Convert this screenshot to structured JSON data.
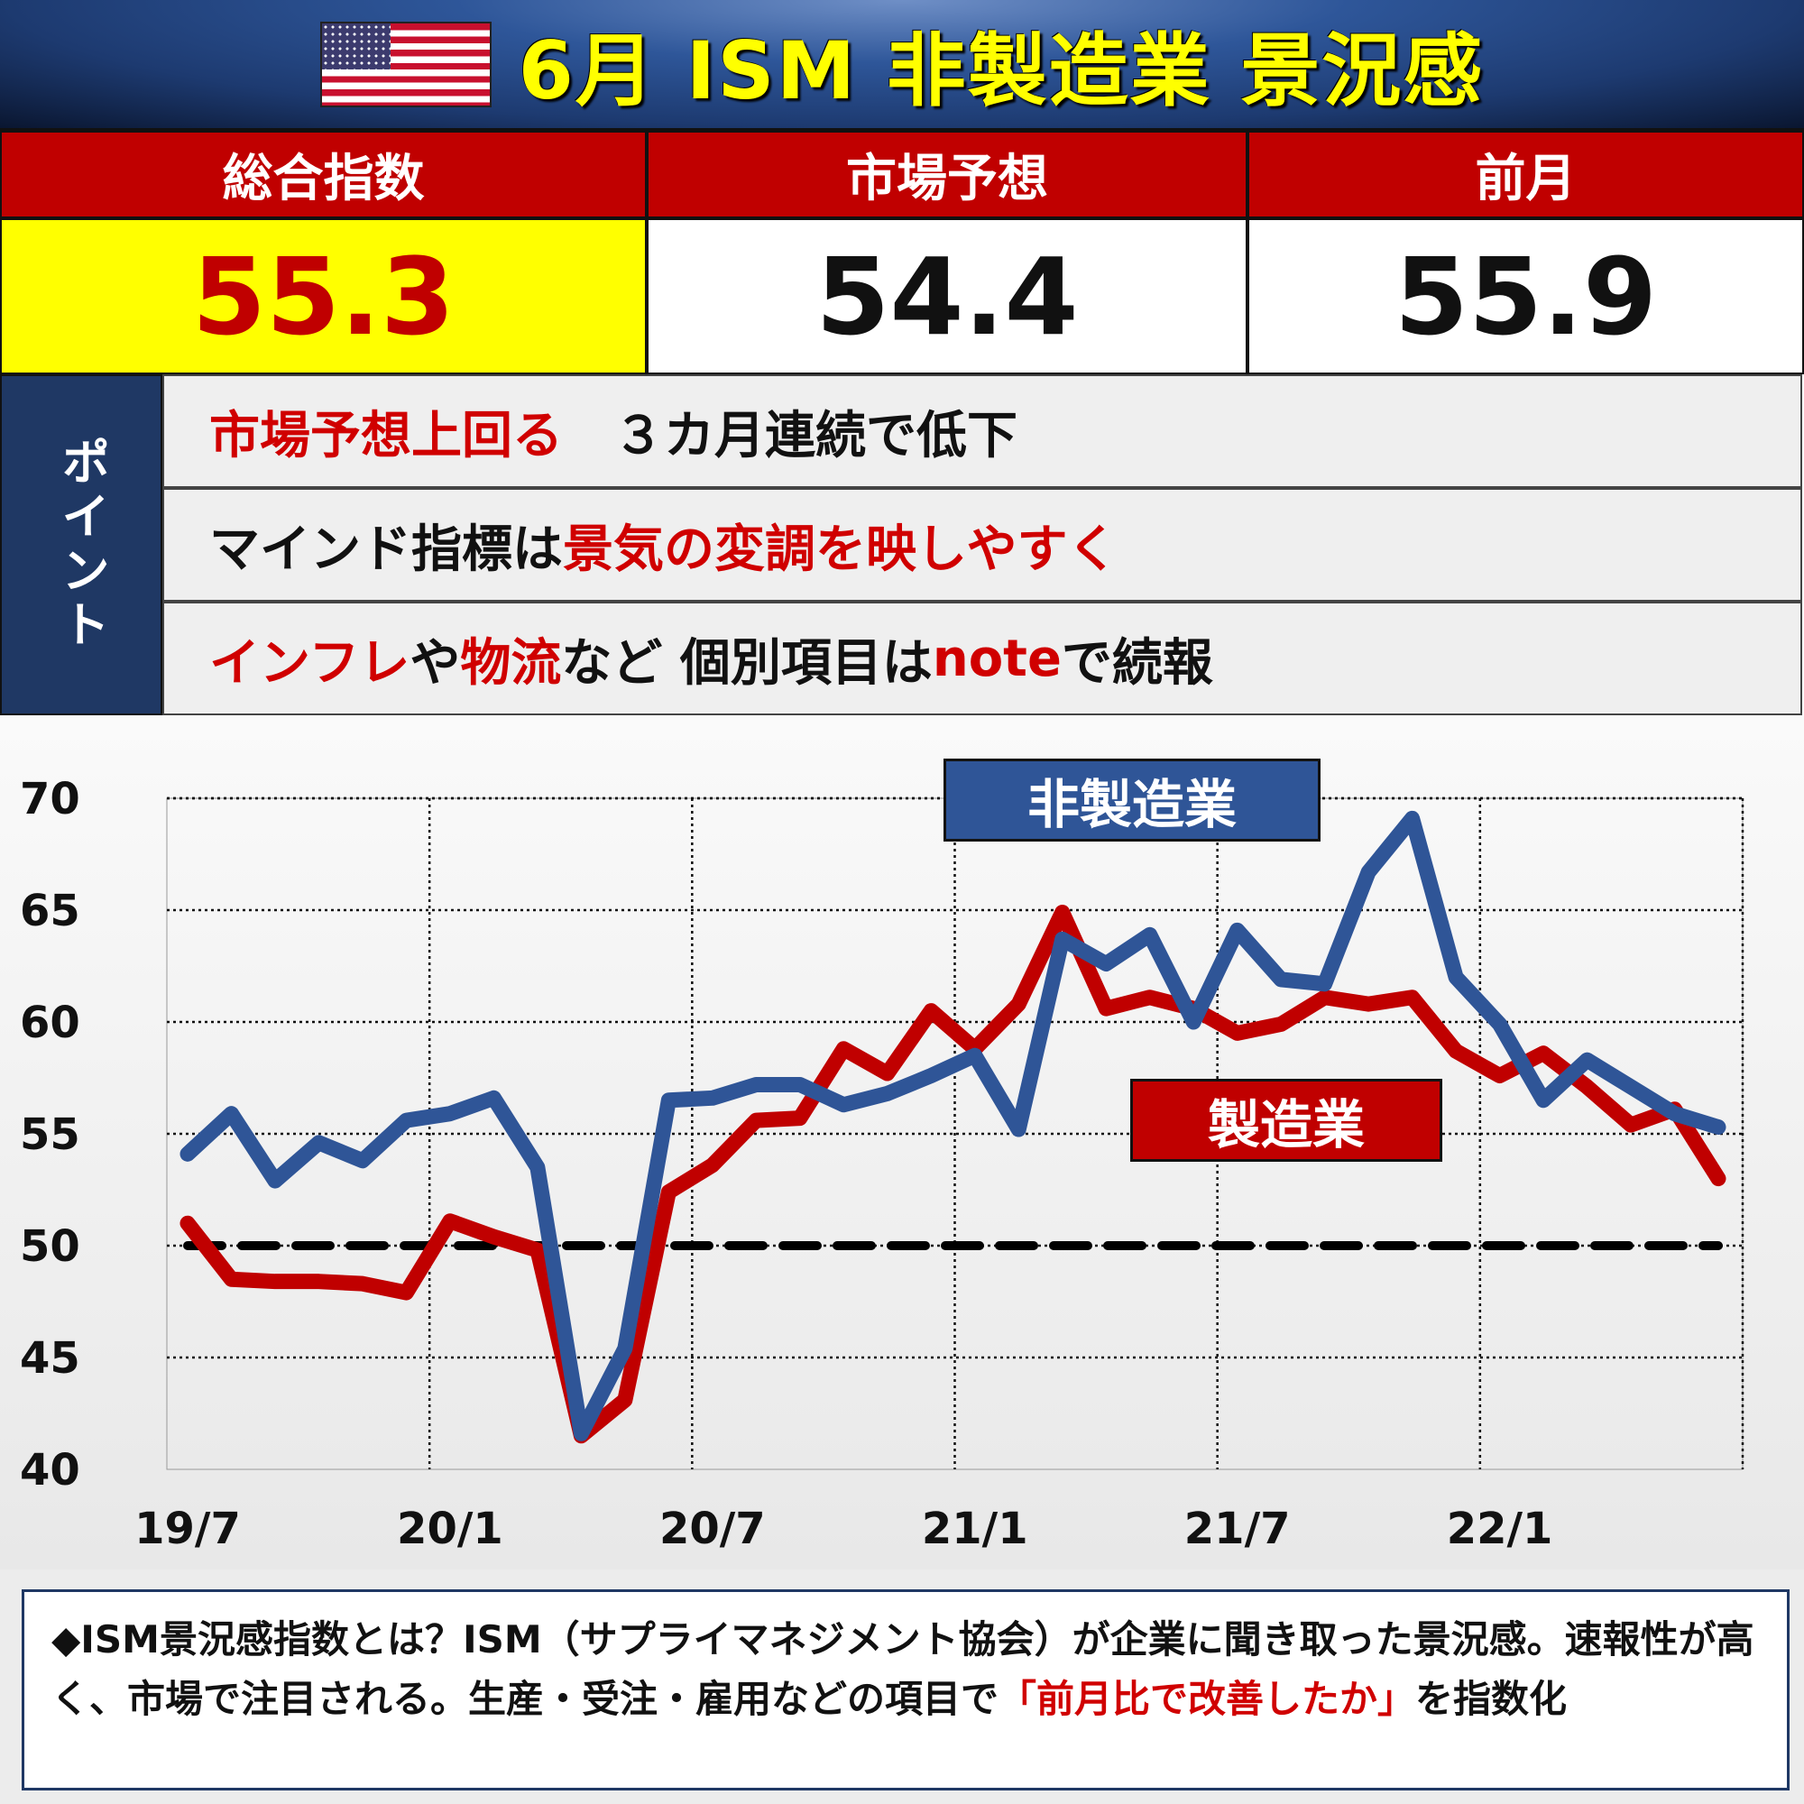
{
  "header": {
    "title": "6月 ISM 非製造業 景況感",
    "flag_icon": "us-flag-icon"
  },
  "stats": [
    {
      "label": "総合指数",
      "value": "55.3",
      "highlight": true
    },
    {
      "label": "市場予想",
      "value": "54.4"
    },
    {
      "label": "前月",
      "value": "55.9"
    }
  ],
  "points": {
    "label": "ポイント",
    "rows": [
      {
        "parts": [
          {
            "text": "市場予想上回る",
            "red": true
          },
          {
            "text": "　３カ月連続で低下"
          }
        ]
      },
      {
        "parts": [
          {
            "text": "マインド指標は"
          },
          {
            "text": "景気の変調を映しやすく",
            "red": true
          }
        ]
      },
      {
        "parts": [
          {
            "text": "インフレ",
            "red": true
          },
          {
            "text": "や"
          },
          {
            "text": "物流",
            "red": true
          },
          {
            "text": "など 個別項目は"
          },
          {
            "text": "note",
            "red": true
          },
          {
            "text": "で続報"
          }
        ]
      }
    ]
  },
  "chart_data": {
    "type": "line",
    "title": "",
    "xlabel": "",
    "ylabel": "",
    "ylim": [
      40,
      70
    ],
    "yticks": [
      70,
      65,
      60,
      55,
      50,
      45,
      40
    ],
    "xtick_labels": [
      "19/7",
      "20/1",
      "20/7",
      "21/1",
      "21/7",
      "22/1"
    ],
    "x": [
      "19/7",
      "19/8",
      "19/9",
      "19/10",
      "19/11",
      "19/12",
      "20/1",
      "20/2",
      "20/3",
      "20/4",
      "20/5",
      "20/6",
      "20/7",
      "20/8",
      "20/9",
      "20/10",
      "20/11",
      "20/12",
      "21/1",
      "21/2",
      "21/3",
      "21/4",
      "21/5",
      "21/6",
      "21/7",
      "21/8",
      "21/9",
      "21/10",
      "21/11",
      "21/12",
      "22/1",
      "22/2",
      "22/3",
      "22/4",
      "22/5",
      "22/6"
    ],
    "reference_line": {
      "value": 50,
      "style": "dashed",
      "color": "#000000"
    },
    "grid": true,
    "series": [
      {
        "name": "非製造業",
        "color": "#2f5597",
        "values": [
          54.1,
          55.9,
          52.9,
          54.6,
          53.8,
          55.6,
          55.9,
          56.6,
          53.5,
          41.6,
          45.4,
          56.5,
          56.6,
          57.2,
          57.2,
          56.3,
          56.8,
          57.6,
          58.5,
          55.2,
          63.7,
          62.6,
          63.9,
          60.0,
          64.1,
          61.9,
          61.7,
          66.7,
          69.1,
          62.0,
          59.9,
          56.5,
          58.3,
          57.1,
          55.9,
          55.3
        ]
      },
      {
        "name": "製造業",
        "color": "#c00000",
        "values": [
          51.0,
          48.5,
          48.4,
          48.4,
          48.3,
          47.9,
          51.1,
          50.4,
          49.8,
          41.5,
          43.1,
          52.4,
          53.6,
          55.6,
          55.7,
          58.8,
          57.7,
          60.5,
          58.8,
          60.8,
          64.9,
          60.6,
          61.1,
          60.6,
          59.5,
          59.9,
          61.1,
          60.8,
          61.1,
          58.7,
          57.6,
          58.6,
          57.1,
          55.4,
          56.1,
          53.0
        ]
      }
    ],
    "legend": [
      {
        "label": "非製造業",
        "color": "#2f5597"
      },
      {
        "label": "製造業",
        "color": "#c00000"
      }
    ]
  },
  "note": {
    "parts": [
      {
        "text": "◆ISM景況感指数とは？ISM（サプライマネジメント協会）が企業に聞き取った景況感。速報性が高く、市場で注目される。生産・受注・雇用などの項目で"
      },
      {
        "text": "「前月比で改善したか」",
        "red": true
      },
      {
        "text": "を指数化"
      }
    ]
  }
}
